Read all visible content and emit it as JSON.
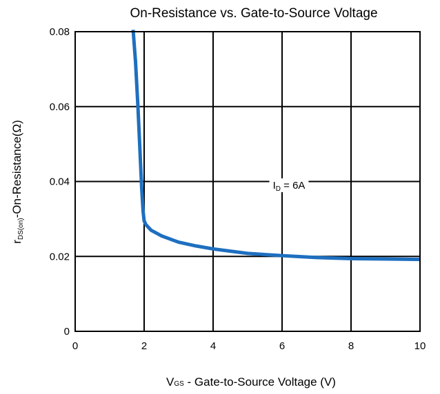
{
  "chart_data": {
    "type": "line",
    "title": "On-Resistance vs. Gate-to-Source Voltage",
    "xlabel": {
      "main": "V",
      "sub": "GS",
      "rest": " - Gate-to-Source Voltage (V)"
    },
    "ylabel": {
      "main": "r",
      "sub": "DS(on)",
      "rest": "-On-Resistance(Ω)"
    },
    "xlim": [
      0,
      10
    ],
    "ylim": [
      0,
      0.08
    ],
    "xticks": [
      0,
      2,
      4,
      6,
      8,
      10
    ],
    "xtick_labels": [
      "0",
      "2",
      "4",
      "6",
      "8",
      "10"
    ],
    "yticks": [
      0,
      0.02,
      0.04,
      0.06,
      0.08
    ],
    "ytick_labels": [
      "0",
      "0.02",
      "0.04",
      "0.06",
      "0.08"
    ],
    "grid": true,
    "annotation": {
      "label": "I",
      "sub": "D",
      "rest": " = 6A",
      "x": 6.2,
      "y": 0.039
    },
    "series": [
      {
        "color": "#1e6fbf",
        "x": [
          1.68,
          1.75,
          1.82,
          1.88,
          1.93,
          1.97,
          2.0,
          2.05,
          2.2,
          2.5,
          3.0,
          3.5,
          4.0,
          5.0,
          6.0,
          7.0,
          8.0,
          9.0,
          10.0
        ],
        "y": [
          0.0805,
          0.072,
          0.06,
          0.048,
          0.038,
          0.032,
          0.0295,
          0.0285,
          0.027,
          0.0255,
          0.0238,
          0.0228,
          0.022,
          0.0208,
          0.0202,
          0.0197,
          0.0194,
          0.0193,
          0.0192
        ]
      }
    ]
  }
}
